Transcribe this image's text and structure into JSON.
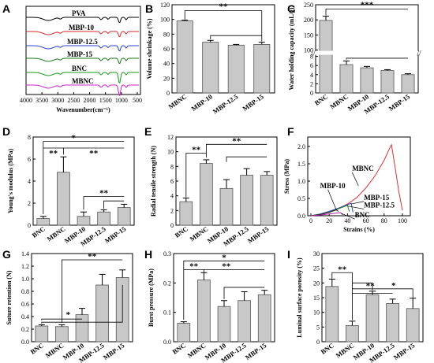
{
  "figure": {
    "panel_count": 9
  },
  "chart_data": [
    {
      "id": "A",
      "panel_label": "A",
      "type": "line",
      "xlabel": "Wavenumber(cm⁻¹)",
      "x_ticks": [
        "4000",
        "3500",
        "3000",
        "2500",
        "2000",
        "1500",
        "1000",
        "500"
      ],
      "xlim": [
        4000,
        400
      ],
      "series": [
        {
          "name": "PVA",
          "color": "#000000"
        },
        {
          "name": "MBP-10",
          "color": "#d42a2a"
        },
        {
          "name": "MBP-12.5",
          "color": "#2a3fd4"
        },
        {
          "name": "MBP-15",
          "color": "#1a7a1a"
        },
        {
          "name": "BNC",
          "color": "#1a9a1a"
        },
        {
          "name": "MBNC",
          "color": "#cc22cc"
        }
      ]
    },
    {
      "id": "B",
      "panel_label": "B",
      "type": "bar",
      "ylabel": "Volume shrinkage (%)",
      "categories": [
        "MBNC",
        "MBP-10",
        "MBP-12.5",
        "MBP-15"
      ],
      "values": [
        98,
        69,
        65,
        66
      ],
      "errors": [
        1,
        2.5,
        1,
        3
      ],
      "ylim": [
        0,
        120
      ],
      "yticks": [
        "0",
        "20",
        "40",
        "60",
        "80",
        "100",
        "120"
      ],
      "significance": [
        {
          "text": "**"
        }
      ]
    },
    {
      "id": "C",
      "panel_label": "C",
      "type": "bar",
      "ylabel": "Water holding capacity (mL/g)",
      "categories": [
        "BNC",
        "MBNC",
        "MBP-10",
        "MBP-12.5",
        "MBP-15"
      ],
      "values": [
        198,
        6.2,
        5.5,
        4.9,
        4.0
      ],
      "errors": [
        14,
        0.8,
        0.3,
        0.2,
        0.2
      ],
      "yticks": [
        "0",
        "2",
        "4",
        "6",
        "8",
        "100",
        "150",
        "200",
        "250"
      ],
      "significance": [
        {
          "text": "***"
        }
      ]
    },
    {
      "id": "D",
      "panel_label": "D",
      "type": "bar",
      "ylabel": "Young's modulus (MPa)",
      "categories": [
        "BNC",
        "MBNC",
        "MBP-10",
        "MBP-12.5",
        "MBP-15"
      ],
      "values": [
        0.6,
        4.8,
        0.8,
        1.2,
        1.6
      ],
      "errors": [
        0.2,
        1.4,
        0.4,
        0.2,
        0.3
      ],
      "ylim": [
        0,
        8
      ],
      "yticks": [
        "0",
        "2",
        "4",
        "6",
        "8"
      ],
      "significance": [
        {
          "text": "*"
        },
        {
          "text": "**"
        },
        {
          "text": "**"
        },
        {
          "text": "**"
        }
      ]
    },
    {
      "id": "E",
      "panel_label": "E",
      "type": "bar",
      "ylabel": "Radial tensile strength (N)",
      "categories": [
        "BNC",
        "MBNC",
        "MBP-10",
        "MBP-12.5",
        "MBP-15"
      ],
      "values": [
        3.2,
        8.4,
        5.0,
        6.8,
        6.8
      ],
      "errors": [
        0.5,
        0.5,
        1.2,
        0.9,
        0.5
      ],
      "ylim": [
        0,
        12
      ],
      "yticks": [
        "0",
        "2",
        "4",
        "6",
        "8",
        "10",
        "12"
      ],
      "significance": [
        {
          "text": "**"
        },
        {
          "text": "**"
        }
      ]
    },
    {
      "id": "F",
      "panel_label": "F",
      "type": "line",
      "xlabel": "Strains (%)",
      "ylabel": "Stress (MPa)",
      "xlim": [
        0,
        100
      ],
      "ylim": [
        0,
        2.0
      ],
      "x_ticks": [
        "0",
        "20",
        "40",
        "60",
        "80",
        "100"
      ],
      "y_ticks": [
        "0.0",
        "0.5",
        "1.0",
        "1.5",
        "2.0"
      ],
      "series": [
        {
          "name": "MBNC",
          "color": "#e03030",
          "x": [
            0,
            10,
            20,
            30,
            40,
            50,
            60,
            70,
            80,
            86,
            88,
            92,
            96,
            100
          ],
          "y": [
            0,
            0.03,
            0.1,
            0.2,
            0.34,
            0.52,
            0.8,
            1.15,
            1.6,
            1.95,
            2.05,
            1.4,
            0.7,
            0.15
          ]
        },
        {
          "name": "MBP-15",
          "color": "#2a3fd4",
          "x": [
            0,
            10,
            20,
            30,
            40,
            44,
            46
          ],
          "y": [
            0,
            0.05,
            0.13,
            0.22,
            0.32,
            0.36,
            0.1
          ]
        },
        {
          "name": "MBP-12.5",
          "color": "#1a8a1a",
          "x": [
            0,
            10,
            20,
            30,
            38,
            40,
            42
          ],
          "y": [
            0,
            0.04,
            0.11,
            0.2,
            0.28,
            0.3,
            0.12
          ]
        },
        {
          "name": "MBP-10",
          "color": "#222222",
          "x": [
            0,
            10,
            20,
            28,
            30
          ],
          "y": [
            0,
            0.04,
            0.1,
            0.17,
            0.12
          ]
        },
        {
          "name": "BNC",
          "color": "#aa22aa",
          "x": [
            0,
            10,
            20,
            32,
            35
          ],
          "y": [
            0,
            0.02,
            0.05,
            0.09,
            0.03
          ]
        }
      ]
    },
    {
      "id": "G",
      "panel_label": "G",
      "type": "bar",
      "ylabel": "Suture retention (N)",
      "categories": [
        "BNC",
        "MBNC",
        "MBP-10",
        "MBP-12.5",
        "MBP-15"
      ],
      "values": [
        0.25,
        0.24,
        0.43,
        0.9,
        1.02
      ],
      "errors": [
        0.02,
        0.03,
        0.1,
        0.17,
        0.12
      ],
      "ylim": [
        0,
        1.4
      ],
      "yticks": [
        "0.0",
        "0.2",
        "0.4",
        "0.6",
        "0.8",
        "1.0",
        "1.2",
        "1.4"
      ],
      "significance": [
        {
          "text": "**"
        },
        {
          "text": "*"
        }
      ]
    },
    {
      "id": "H",
      "panel_label": "H",
      "type": "bar",
      "ylabel": "Burst pressure (MPa)",
      "categories": [
        "BNC",
        "MBNC",
        "MBP-10",
        "MBP-12.5",
        "MBP-15"
      ],
      "values": [
        0.063,
        0.21,
        0.12,
        0.14,
        0.16
      ],
      "errors": [
        0.005,
        0.025,
        0.02,
        0.03,
        0.015
      ],
      "ylim": [
        0,
        0.3
      ],
      "yticks": [
        "0.0",
        "0.1",
        "0.2",
        "0.3"
      ],
      "significance": [
        {
          "text": "*"
        },
        {
          "text": "**"
        },
        {
          "text": "**"
        }
      ]
    },
    {
      "id": "I",
      "panel_label": "I",
      "type": "bar",
      "ylabel": "Luminal surface porosity (%)",
      "categories": [
        "BNC",
        "MBNC",
        "MBP-10",
        "MBP-12.5",
        "MBP-15"
      ],
      "values": [
        18.8,
        5.5,
        16.0,
        13.0,
        11.3
      ],
      "errors": [
        2.5,
        1.5,
        1.2,
        1.5,
        3.5
      ],
      "ylim": [
        0,
        30
      ],
      "yticks": [
        "0",
        "5",
        "10",
        "15",
        "20",
        "25",
        "30"
      ],
      "significance": [
        {
          "text": "**"
        },
        {
          "text": "**"
        },
        {
          "text": "*"
        }
      ]
    }
  ]
}
